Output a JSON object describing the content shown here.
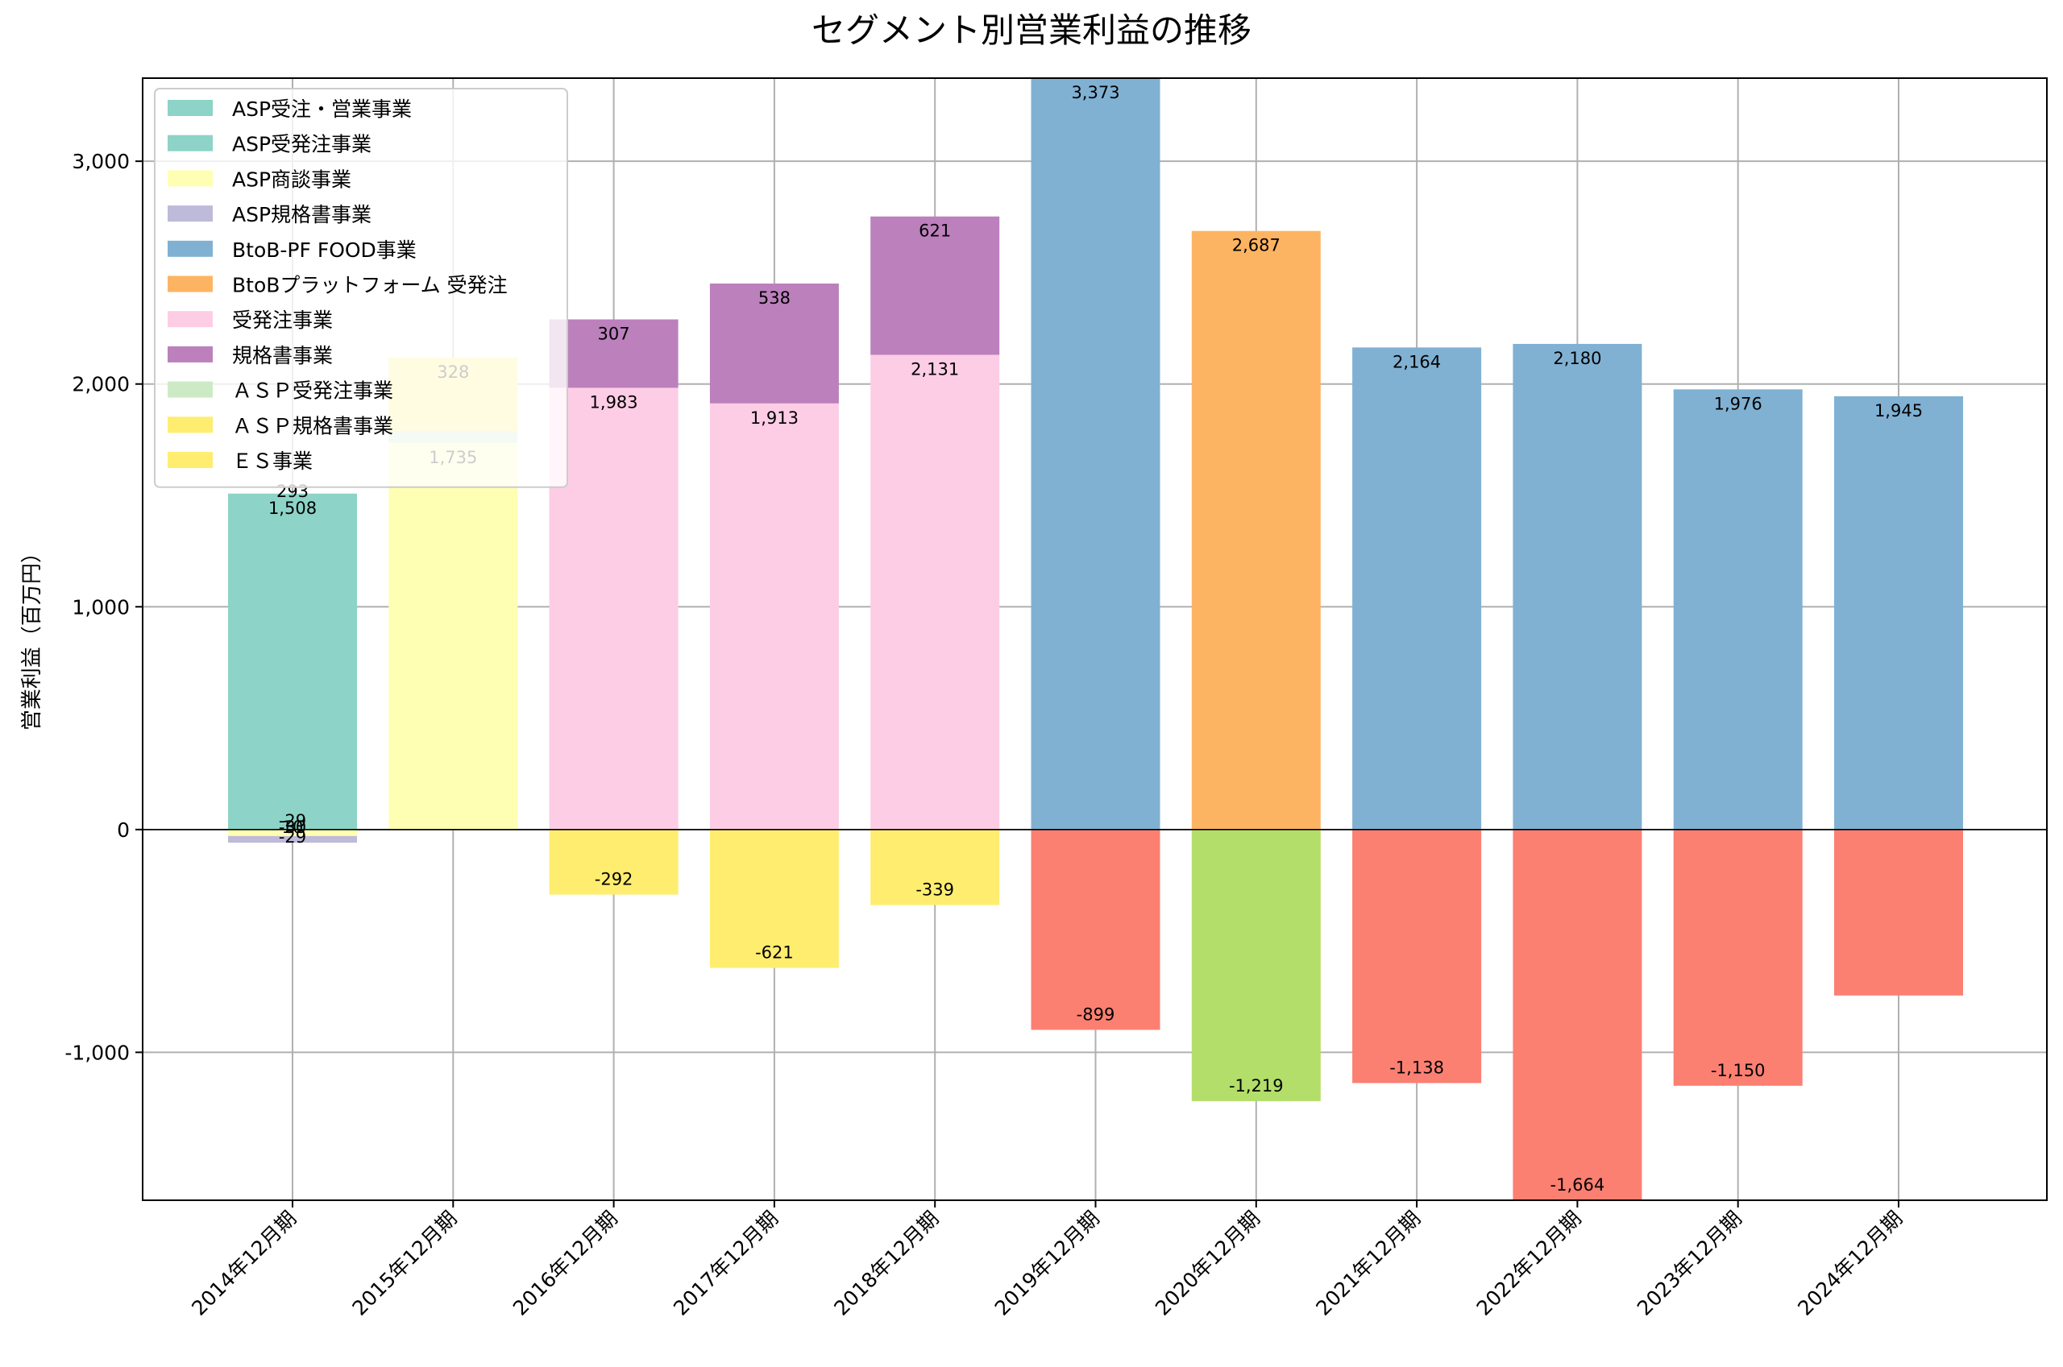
{
  "chart_data": {
    "type": "bar",
    "stacked": true,
    "title": "セグメント別営業利益の推移",
    "xlabel": "",
    "ylabel": "営業利益（百万円）",
    "ylim": [
      -1664,
      3373
    ],
    "yticks": [
      -1000,
      0,
      1000,
      2000,
      3000
    ],
    "ytick_labels": [
      "-1,000",
      "0",
      "1,000",
      "2,000",
      "3,000"
    ],
    "grid": true,
    "legend_position": "upper-left",
    "categories": [
      "2014年12月期",
      "2015年12月期",
      "2016年12月期",
      "2017年12月期",
      "2018年12月期",
      "2019年12月期",
      "2020年12月期",
      "2021年12月期",
      "2022年12月期",
      "2023年12月期",
      "2024年12月期"
    ],
    "series": [
      {
        "name": "ASP受注・営業事業",
        "color": "#8dd3c7",
        "values": [
          1508,
          null,
          null,
          null,
          null,
          null,
          null,
          null,
          null,
          null,
          null
        ],
        "labels": [
          "1,508",
          null,
          null,
          null,
          null,
          null,
          null,
          null,
          null,
          null,
          null
        ]
      },
      {
        "name": "ASP受発注事業",
        "color": "#8dd3c7",
        "values": [
          null,
          null,
          null,
          null,
          null,
          null,
          null,
          null,
          null,
          null,
          null
        ],
        "labels": [
          null,
          null,
          null,
          null,
          null,
          null,
          null,
          null,
          null,
          null,
          null
        ]
      },
      {
        "name": "ASP商談事業",
        "color": "#ffffb3",
        "values": [
          -29,
          1735,
          null,
          null,
          null,
          null,
          null,
          null,
          null,
          null,
          null
        ],
        "labels": [
          "-29",
          "1,735",
          null,
          null,
          null,
          null,
          null,
          null,
          null,
          null,
          null
        ]
      },
      {
        "name": "ASP規格書事業",
        "color": "#bebada",
        "values": [
          -30,
          null,
          null,
          null,
          null,
          null,
          null,
          null,
          null,
          null,
          null
        ],
        "labels": [
          "-30",
          null,
          null,
          null,
          null,
          null,
          null,
          null,
          null,
          null,
          null
        ]
      },
      {
        "name": "BtoB-PF FOOD事業",
        "color": "#80b1d3",
        "values": [
          null,
          null,
          null,
          null,
          null,
          3373,
          null,
          2164,
          2180,
          1976,
          1945
        ],
        "labels": [
          null,
          null,
          null,
          null,
          null,
          "3,373",
          null,
          "2,164",
          "2,180",
          "1,976",
          "1,945"
        ]
      },
      {
        "name": "BtoBプラットフォーム 受発注",
        "color": "#fdb462",
        "values": [
          null,
          null,
          null,
          null,
          null,
          null,
          2687,
          null,
          null,
          null,
          null
        ],
        "labels": [
          null,
          null,
          null,
          null,
          null,
          null,
          "2,687",
          null,
          null,
          null,
          null
        ]
      },
      {
        "name": "受発注事業",
        "color": "#fccde5",
        "values": [
          null,
          null,
          1983,
          1913,
          2131,
          null,
          null,
          null,
          null,
          null,
          null
        ],
        "labels": [
          null,
          null,
          "1,983",
          "1,913",
          "2,131",
          null,
          null,
          null,
          null,
          null,
          null
        ]
      },
      {
        "name": "規格書事業",
        "color": "#bc80bd",
        "values": [
          null,
          null,
          307,
          538,
          621,
          null,
          null,
          null,
          null,
          null,
          null
        ],
        "labels": [
          null,
          null,
          "307",
          "538",
          "621",
          null,
          null,
          null,
          null,
          null,
          null
        ]
      },
      {
        "name": "ＡＳＰ受発注事業",
        "color": "#ccebc5",
        "values": [
          null,
          55,
          null,
          null,
          null,
          null,
          null,
          null,
          null,
          null,
          null
        ],
        "labels": [
          null,
          null,
          null,
          null,
          null,
          null,
          null,
          null,
          null,
          null,
          null
        ]
      },
      {
        "name": "ＡＳＰ規格書事業",
        "color": "#ffed6f",
        "values": [
          null,
          328,
          -292,
          -621,
          -339,
          null,
          null,
          null,
          null,
          null,
          null
        ],
        "labels": [
          null,
          "328",
          "-292",
          "-621",
          "-339",
          null,
          null,
          null,
          null,
          null,
          null
        ]
      },
      {
        "name": "ＥＳ事業",
        "color": "#ffed6f",
        "values": [
          null,
          null,
          null,
          null,
          null,
          null,
          null,
          null,
          null,
          null,
          null
        ],
        "labels": [
          null,
          null,
          null,
          null,
          null,
          null,
          null,
          null,
          null,
          null,
          null
        ]
      },
      {
        "color": "#fb8072",
        "values": [
          null,
          null,
          null,
          null,
          null,
          -899,
          null,
          -1138,
          -1664,
          -1150,
          -745
        ],
        "labels": [
          null,
          null,
          null,
          null,
          null,
          "-899",
          null,
          "-1,138",
          "-1,664",
          "-1,150",
          null
        ]
      },
      {
        "color": "#b3de69",
        "values": [
          null,
          null,
          null,
          null,
          null,
          null,
          -1219,
          null,
          null,
          null,
          null
        ],
        "labels": [
          null,
          null,
          null,
          null,
          null,
          null,
          "-1,219",
          null,
          null,
          null,
          null
        ]
      }
    ],
    "extra_labels": [
      {
        "category_index": 0,
        "text": "293"
      },
      {
        "category_index": 0,
        "text": "10"
      },
      {
        "category_index": 0,
        "text": "-29"
      }
    ]
  }
}
